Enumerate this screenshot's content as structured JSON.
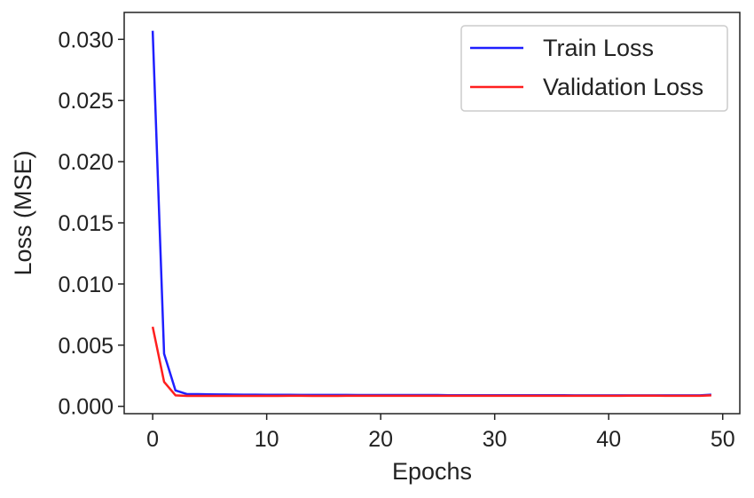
{
  "chart_data": {
    "type": "line",
    "title": "",
    "xlabel": "Epochs",
    "ylabel": "Loss (MSE)",
    "xlim": [
      -2.5,
      51.5
    ],
    "ylim": [
      -0.0006,
      0.0322
    ],
    "xticks": [
      0,
      10,
      20,
      30,
      40,
      50
    ],
    "xtick_labels": [
      "0",
      "10",
      "20",
      "30",
      "40",
      "50"
    ],
    "yticks": [
      0.0,
      0.005,
      0.01,
      0.015,
      0.02,
      0.025,
      0.03
    ],
    "ytick_labels": [
      "0.000",
      "0.005",
      "0.010",
      "0.015",
      "0.020",
      "0.025",
      "0.030"
    ],
    "grid": false,
    "legend_position": "top-right",
    "x": [
      0,
      1,
      2,
      3,
      4,
      5,
      6,
      7,
      8,
      9,
      10,
      11,
      12,
      13,
      14,
      15,
      16,
      17,
      18,
      19,
      20,
      21,
      22,
      23,
      24,
      25,
      26,
      27,
      28,
      29,
      30,
      31,
      32,
      33,
      34,
      35,
      36,
      37,
      38,
      39,
      40,
      41,
      42,
      43,
      44,
      45,
      46,
      47,
      48,
      49
    ],
    "series": [
      {
        "name": "Train Loss",
        "color": "#1f1fff",
        "values": [
          0.0307,
          0.0043,
          0.0013,
          0.001,
          0.001,
          0.00098,
          0.00097,
          0.00096,
          0.00095,
          0.00095,
          0.00094,
          0.00094,
          0.00094,
          0.00093,
          0.00093,
          0.00093,
          0.00093,
          0.00093,
          0.00092,
          0.00092,
          0.00092,
          0.00092,
          0.00092,
          0.00092,
          0.00092,
          0.00092,
          0.00091,
          0.00091,
          0.00091,
          0.00091,
          0.00091,
          0.00091,
          0.00091,
          0.00091,
          0.00091,
          0.00091,
          0.00091,
          0.0009,
          0.0009,
          0.0009,
          0.0009,
          0.0009,
          0.0009,
          0.0009,
          0.0009,
          0.0009,
          0.0009,
          0.0009,
          0.0009,
          0.00095
        ]
      },
      {
        "name": "Validation Loss",
        "color": "#ff1f1f",
        "values": [
          0.0065,
          0.002,
          0.0009,
          0.00085,
          0.00085,
          0.00085,
          0.00085,
          0.00085,
          0.00085,
          0.00085,
          0.00085,
          0.00085,
          0.00086,
          0.00086,
          0.00085,
          0.00085,
          0.00085,
          0.00086,
          0.00086,
          0.00086,
          0.00086,
          0.00086,
          0.00086,
          0.00086,
          0.00086,
          0.00086,
          0.00086,
          0.00086,
          0.00086,
          0.00086,
          0.00086,
          0.00086,
          0.00086,
          0.00086,
          0.00086,
          0.00086,
          0.00086,
          0.00086,
          0.00086,
          0.00086,
          0.00086,
          0.00086,
          0.00087,
          0.00087,
          0.00087,
          0.00086,
          0.00086,
          0.00086,
          0.00086,
          0.0009
        ]
      }
    ]
  }
}
